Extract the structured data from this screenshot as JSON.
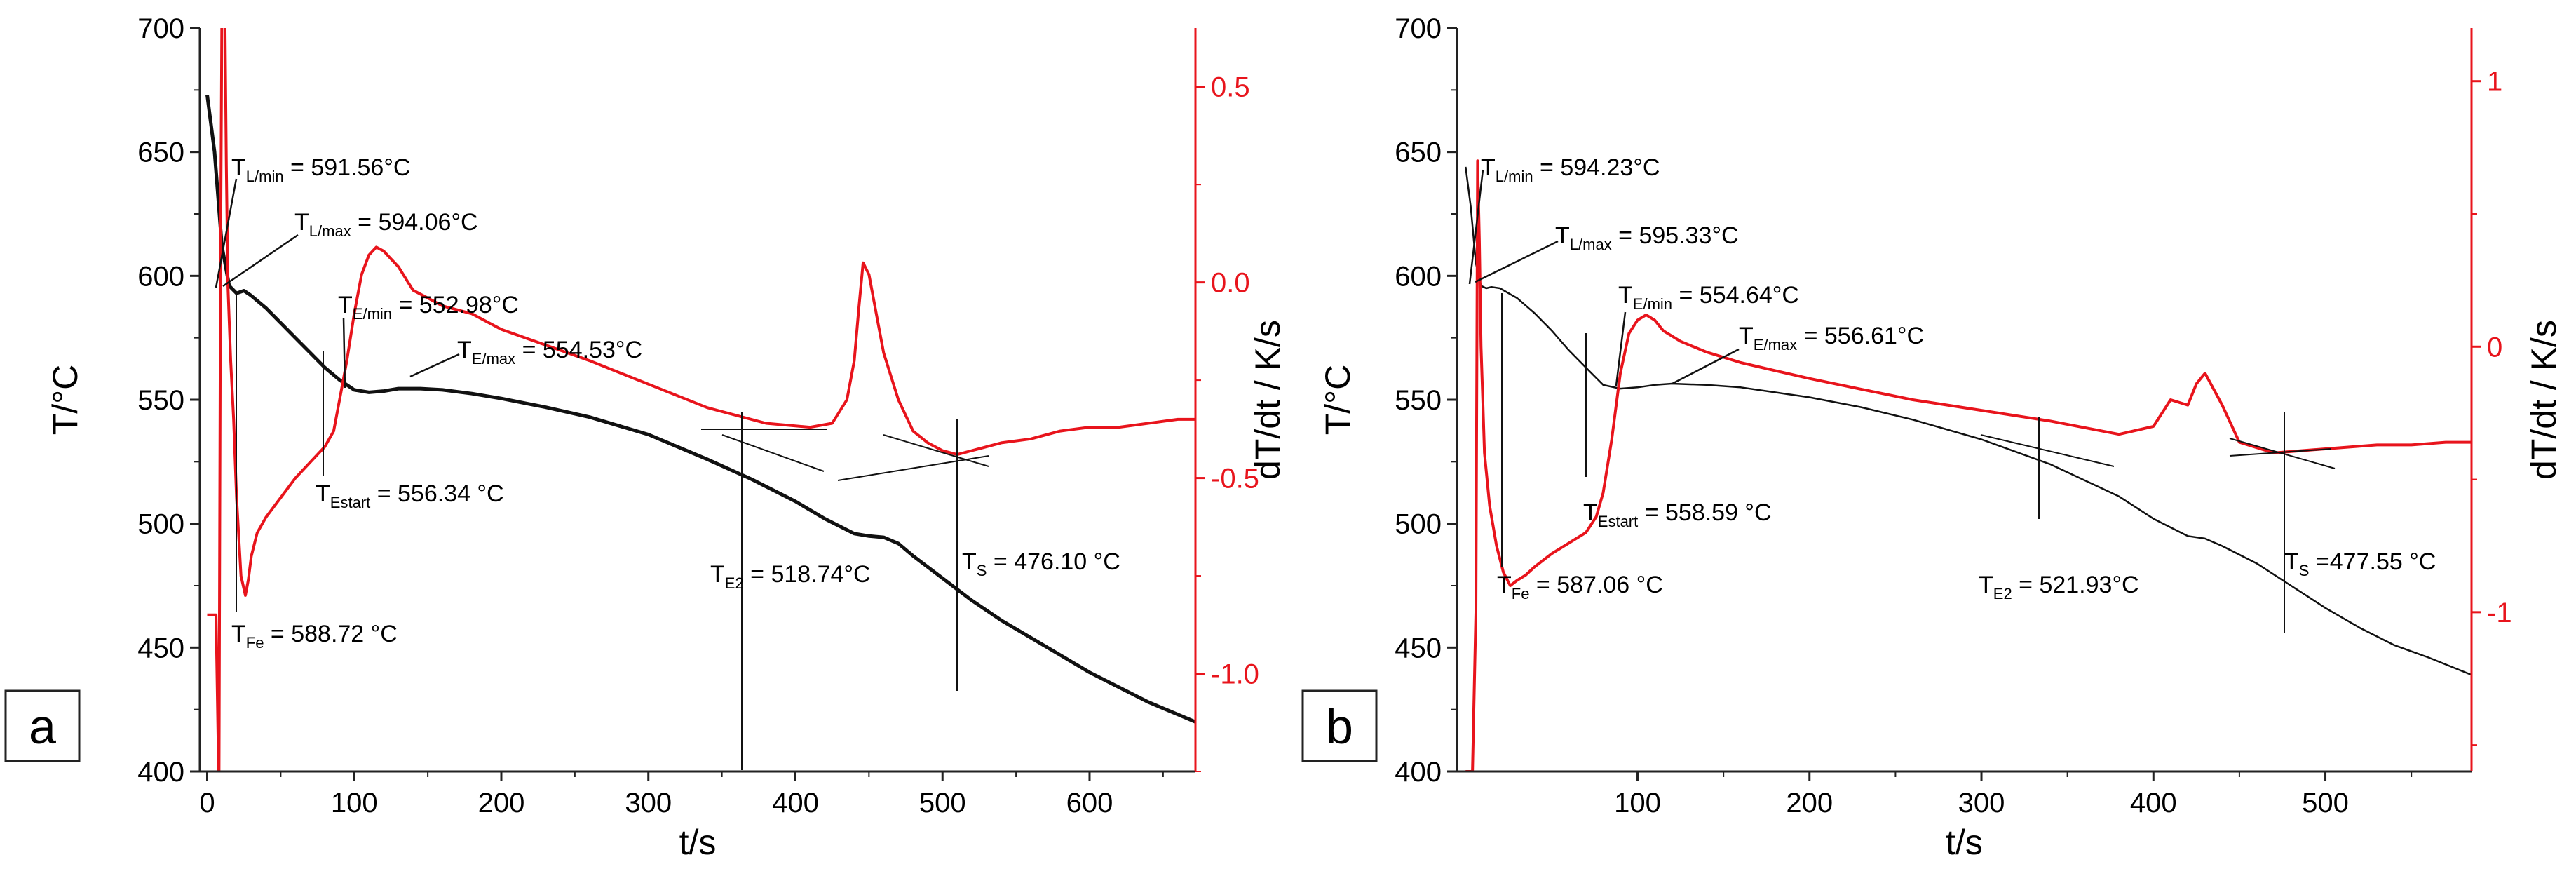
{
  "colors": {
    "temperature": "#111111",
    "derivative": "#e8141c",
    "axis": "#222222"
  },
  "chart_data": [
    {
      "type": "line",
      "panel_label": "a",
      "xlabel": "t/s",
      "ylabel": "T/°C",
      "y2label": "dT/dt / K/s",
      "xlim": [
        -5,
        672
      ],
      "ylim": [
        400,
        700
      ],
      "y2lim": [
        -1.25,
        0.65
      ],
      "xticks": [
        0,
        100,
        200,
        300,
        400,
        500,
        600
      ],
      "yticks": [
        400,
        450,
        500,
        550,
        600,
        650,
        700
      ],
      "y2ticks": [
        -1.0,
        -0.5,
        0.0,
        0.5
      ],
      "y2tick_labels": [
        "-1.0",
        "-0.5",
        "0.0",
        "0.5"
      ],
      "series": [
        {
          "name": "T",
          "axis": "left",
          "x": [
            0,
            5,
            10,
            15,
            20,
            25,
            30,
            40,
            50,
            60,
            70,
            80,
            90,
            100,
            110,
            120,
            130,
            145,
            160,
            180,
            200,
            230,
            260,
            300,
            340,
            370,
            400,
            420,
            440,
            450,
            460,
            470,
            480,
            500,
            520,
            540,
            560,
            580,
            600,
            620,
            640,
            660,
            672
          ],
          "values": [
            673,
            650,
            612,
            596,
            593,
            594,
            592,
            587,
            581,
            575,
            569,
            563,
            558,
            554,
            553,
            553.5,
            554.5,
            554.5,
            554,
            552.5,
            550.5,
            547,
            543,
            536,
            526,
            518,
            509,
            502,
            496,
            495,
            494.5,
            492,
            487,
            478,
            469,
            461,
            454,
            447,
            440,
            434,
            428,
            423,
            420
          ]
        },
        {
          "name": "dT/dt",
          "axis": "right",
          "x": [
            0,
            3,
            6,
            8,
            9,
            10,
            11,
            12,
            13,
            14,
            16,
            18,
            20,
            23,
            26,
            28,
            30,
            34,
            40,
            50,
            60,
            70,
            80,
            86,
            90,
            95,
            100,
            105,
            110,
            115,
            120,
            125,
            130,
            140,
            150,
            160,
            180,
            200,
            230,
            260,
            300,
            340,
            380,
            410,
            425,
            435,
            440,
            443,
            446,
            450,
            455,
            460,
            470,
            480,
            490,
            500,
            510,
            520,
            540,
            560,
            580,
            600,
            620,
            640,
            660,
            672
          ],
          "values": [
            -0.85,
            -0.85,
            -0.85,
            -1.3,
            0.0,
            0.7,
            1.1,
            0.7,
            0.3,
            0.0,
            -0.2,
            -0.35,
            -0.55,
            -0.75,
            -0.8,
            -0.76,
            -0.7,
            -0.64,
            -0.6,
            -0.55,
            -0.5,
            -0.46,
            -0.42,
            -0.38,
            -0.3,
            -0.2,
            -0.08,
            0.02,
            0.07,
            0.09,
            0.08,
            0.06,
            0.04,
            -0.02,
            -0.04,
            -0.06,
            -0.08,
            -0.12,
            -0.16,
            -0.2,
            -0.26,
            -0.32,
            -0.36,
            -0.37,
            -0.36,
            -0.3,
            -0.2,
            -0.07,
            0.05,
            0.02,
            -0.08,
            -0.18,
            -0.3,
            -0.38,
            -0.41,
            -0.43,
            -0.44,
            -0.43,
            -0.41,
            -0.4,
            -0.38,
            -0.37,
            -0.37,
            -0.36,
            -0.35,
            -0.35
          ]
        }
      ],
      "annotations": [
        {
          "main": "T",
          "sub": "L/min",
          "rest": " = 591.56°C"
        },
        {
          "main": "T",
          "sub": "L/max",
          "rest": " = 594.06°C"
        },
        {
          "main": "T",
          "sub": "E/min",
          "rest": " = 552.98°C"
        },
        {
          "main": "T",
          "sub": "E/max",
          "rest": " = 554.53°C"
        },
        {
          "main": "T",
          "sub": "Estart",
          "rest": " = 556.34 °C"
        },
        {
          "main": "T",
          "sub": "Fe",
          "rest": " = 588.72 °C"
        },
        {
          "main": "T",
          "sub": "E2",
          "rest": " = 518.74°C"
        },
        {
          "main": "T",
          "sub": "S",
          "rest": " = 476.10 °C"
        }
      ]
    },
    {
      "type": "line",
      "panel_label": "b",
      "xlabel": "t/s",
      "ylabel": "T/°C",
      "y2label": "dT/dt / K/s",
      "xlim": [
        -5,
        585
      ],
      "ylim": [
        400,
        700
      ],
      "y2lim": [
        -1.6,
        1.2
      ],
      "xticks": [
        100,
        200,
        300,
        400,
        500
      ],
      "yticks": [
        400,
        450,
        500,
        550,
        600,
        650,
        700
      ],
      "y2ticks": [
        -1,
        0,
        1
      ],
      "y2tick_labels": [
        "-1",
        "0",
        "1"
      ],
      "series": [
        {
          "name": "T",
          "axis": "left",
          "x": [
            0,
            3,
            6,
            9,
            12,
            15,
            20,
            30,
            40,
            50,
            60,
            70,
            80,
            90,
            100,
            110,
            120,
            140,
            160,
            180,
            200,
            230,
            260,
            300,
            340,
            380,
            400,
            420,
            430,
            440,
            460,
            480,
            500,
            520,
            540,
            560,
            585
          ],
          "values": [
            644,
            628,
            605,
            596,
            595,
            595.5,
            595,
            591,
            585,
            578,
            570,
            563,
            556,
            554.5,
            555,
            556,
            556.5,
            556,
            555,
            553,
            551,
            547,
            542,
            534,
            524,
            511,
            502,
            495,
            494,
            491,
            484,
            475,
            466,
            458,
            451,
            446,
            439
          ]
        },
        {
          "name": "dT/dt",
          "axis": "right",
          "x": [
            0,
            4,
            6,
            7,
            8,
            9,
            10,
            11,
            14,
            18,
            22,
            26,
            30,
            35,
            40,
            50,
            60,
            70,
            76,
            80,
            85,
            90,
            95,
            100,
            105,
            110,
            115,
            125,
            140,
            160,
            180,
            200,
            230,
            260,
            300,
            340,
            380,
            400,
            410,
            420,
            425,
            430,
            440,
            450,
            470,
            490,
            510,
            530,
            550,
            570,
            585
          ],
          "values": [
            -1.6,
            -1.6,
            -1.0,
            0.7,
            0.4,
            0.0,
            -0.2,
            -0.4,
            -0.6,
            -0.75,
            -0.85,
            -0.9,
            -0.88,
            -0.86,
            -0.83,
            -0.78,
            -0.74,
            -0.7,
            -0.64,
            -0.55,
            -0.35,
            -0.1,
            0.05,
            0.1,
            0.12,
            0.1,
            0.06,
            0.02,
            -0.02,
            -0.06,
            -0.09,
            -0.12,
            -0.16,
            -0.2,
            -0.24,
            -0.28,
            -0.33,
            -0.3,
            -0.2,
            -0.22,
            -0.14,
            -0.1,
            -0.22,
            -0.36,
            -0.4,
            -0.39,
            -0.38,
            -0.37,
            -0.37,
            -0.36,
            -0.36
          ]
        }
      ],
      "annotations": [
        {
          "main": "T",
          "sub": "L/min",
          "rest": " = 594.23°C"
        },
        {
          "main": "T",
          "sub": "L/max",
          "rest": " = 595.33°C"
        },
        {
          "main": "T",
          "sub": "E/min",
          "rest": " = 554.64°C"
        },
        {
          "main": "T",
          "sub": "E/max",
          "rest": " = 556.61°C"
        },
        {
          "main": "T",
          "sub": "Estart",
          "rest": " = 558.59 °C"
        },
        {
          "main": "T",
          "sub": "Fe",
          "rest": " = 587.06 °C"
        },
        {
          "main": "T",
          "sub": "E2",
          "rest": " = 521.93°C"
        },
        {
          "main": "T",
          "sub": "S",
          "rest": " =477.55 °C"
        }
      ]
    }
  ]
}
